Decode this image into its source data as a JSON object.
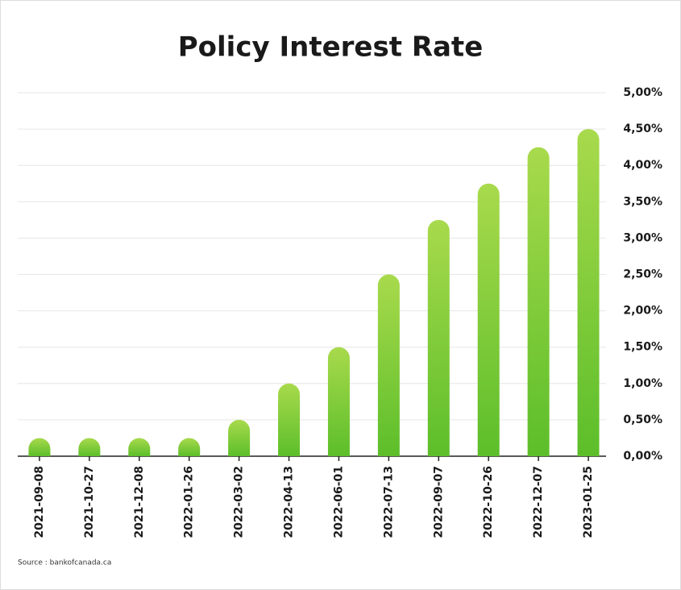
{
  "chart_data": {
    "type": "bar",
    "title": "Policy Interest Rate",
    "source": "Source : bankofcanada.ca",
    "categories": [
      "2021-09-08",
      "2021-10-27",
      "2021-12-08",
      "2022-01-26",
      "2022-03-02",
      "2022-04-13",
      "2022-06-01",
      "2022-07-13",
      "2022-09-07",
      "2022-10-26",
      "2022-12-07",
      "2023-01-25"
    ],
    "values": [
      0.25,
      0.25,
      0.25,
      0.25,
      0.5,
      1.0,
      1.5,
      2.5,
      3.25,
      3.75,
      4.25,
      4.5
    ],
    "ylim": [
      0,
      5
    ],
    "yticks": [
      {
        "value": 0,
        "label": "0,00%"
      },
      {
        "value": 0.5,
        "label": "0,50%"
      },
      {
        "value": 1,
        "label": "1,00%"
      },
      {
        "value": 1.5,
        "label": "1,50%"
      },
      {
        "value": 2,
        "label": "2,00%"
      },
      {
        "value": 2.5,
        "label": "2,50%"
      },
      {
        "value": 3,
        "label": "3,00%"
      },
      {
        "value": 3.5,
        "label": "3,50%"
      },
      {
        "value": 4,
        "label": "4,00%"
      },
      {
        "value": 4.5,
        "label": "4,50%"
      },
      {
        "value": 5,
        "label": "5,00%"
      }
    ],
    "grid": true
  }
}
